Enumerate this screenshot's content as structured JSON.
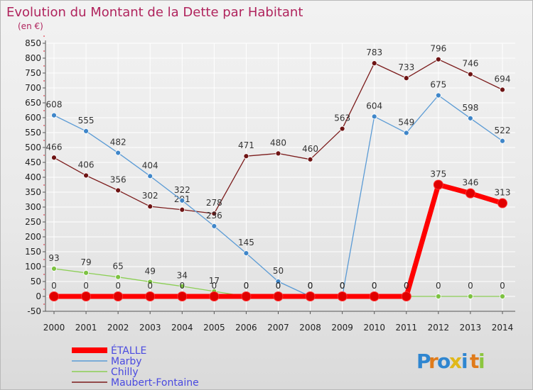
{
  "chart_data": {
    "type": "line",
    "title": "Evolution du Montant de la Dette par Habitant",
    "subtitle": "(en €)",
    "xlabel": "",
    "ylabel": "",
    "ylim": [
      -50,
      850
    ],
    "yticks": [
      -50,
      0,
      50,
      100,
      150,
      200,
      250,
      300,
      350,
      400,
      450,
      500,
      550,
      600,
      650,
      700,
      750,
      800,
      850
    ],
    "x": [
      "2000",
      "2001",
      "2002",
      "2003",
      "2004",
      "2005",
      "2006",
      "2007",
      "2008",
      "2009",
      "2010",
      "2011",
      "2012",
      "2013",
      "2014"
    ],
    "grid": true,
    "legend_position": "bottom-left",
    "series": [
      {
        "name": "Maubert-Fontaine",
        "color": "#7b1b1b",
        "marker": "#6e1414",
        "values": [
          466,
          406,
          356,
          302,
          291,
          278,
          471,
          480,
          460,
          563,
          783,
          733,
          796,
          746,
          694
        ]
      },
      {
        "name": "Marby",
        "color": "#5b9bd5",
        "marker": "#3f86c9",
        "values": [
          608,
          555,
          482,
          404,
          322,
          236,
          145,
          50,
          0,
          0,
          604,
          549,
          675,
          598,
          522
        ]
      },
      {
        "name": "Chilly",
        "color": "#8ccf55",
        "marker": "#7dc242",
        "values": [
          93,
          79,
          65,
          49,
          34,
          17,
          0,
          0,
          0,
          0,
          0,
          0,
          0,
          0,
          0
        ]
      },
      {
        "name": "ÉTALLE",
        "color": "#ff0000",
        "marker": "#e00000",
        "values": [
          0,
          0,
          0,
          0,
          0,
          0,
          0,
          0,
          0,
          0,
          0,
          0,
          375,
          346,
          313
        ]
      }
    ]
  },
  "legend": [
    "ÉTALLE",
    "Marby",
    "Chilly",
    "Maubert-Fontaine"
  ],
  "logo": {
    "letters": [
      "P",
      "r",
      "o",
      "x",
      "i",
      "t",
      "i"
    ],
    "colors": [
      "#2f86d0",
      "#e07b1a",
      "#2f86d0",
      "#e0b81a",
      "#2f86d0",
      "#e07b1a",
      "#8cc63f"
    ]
  }
}
